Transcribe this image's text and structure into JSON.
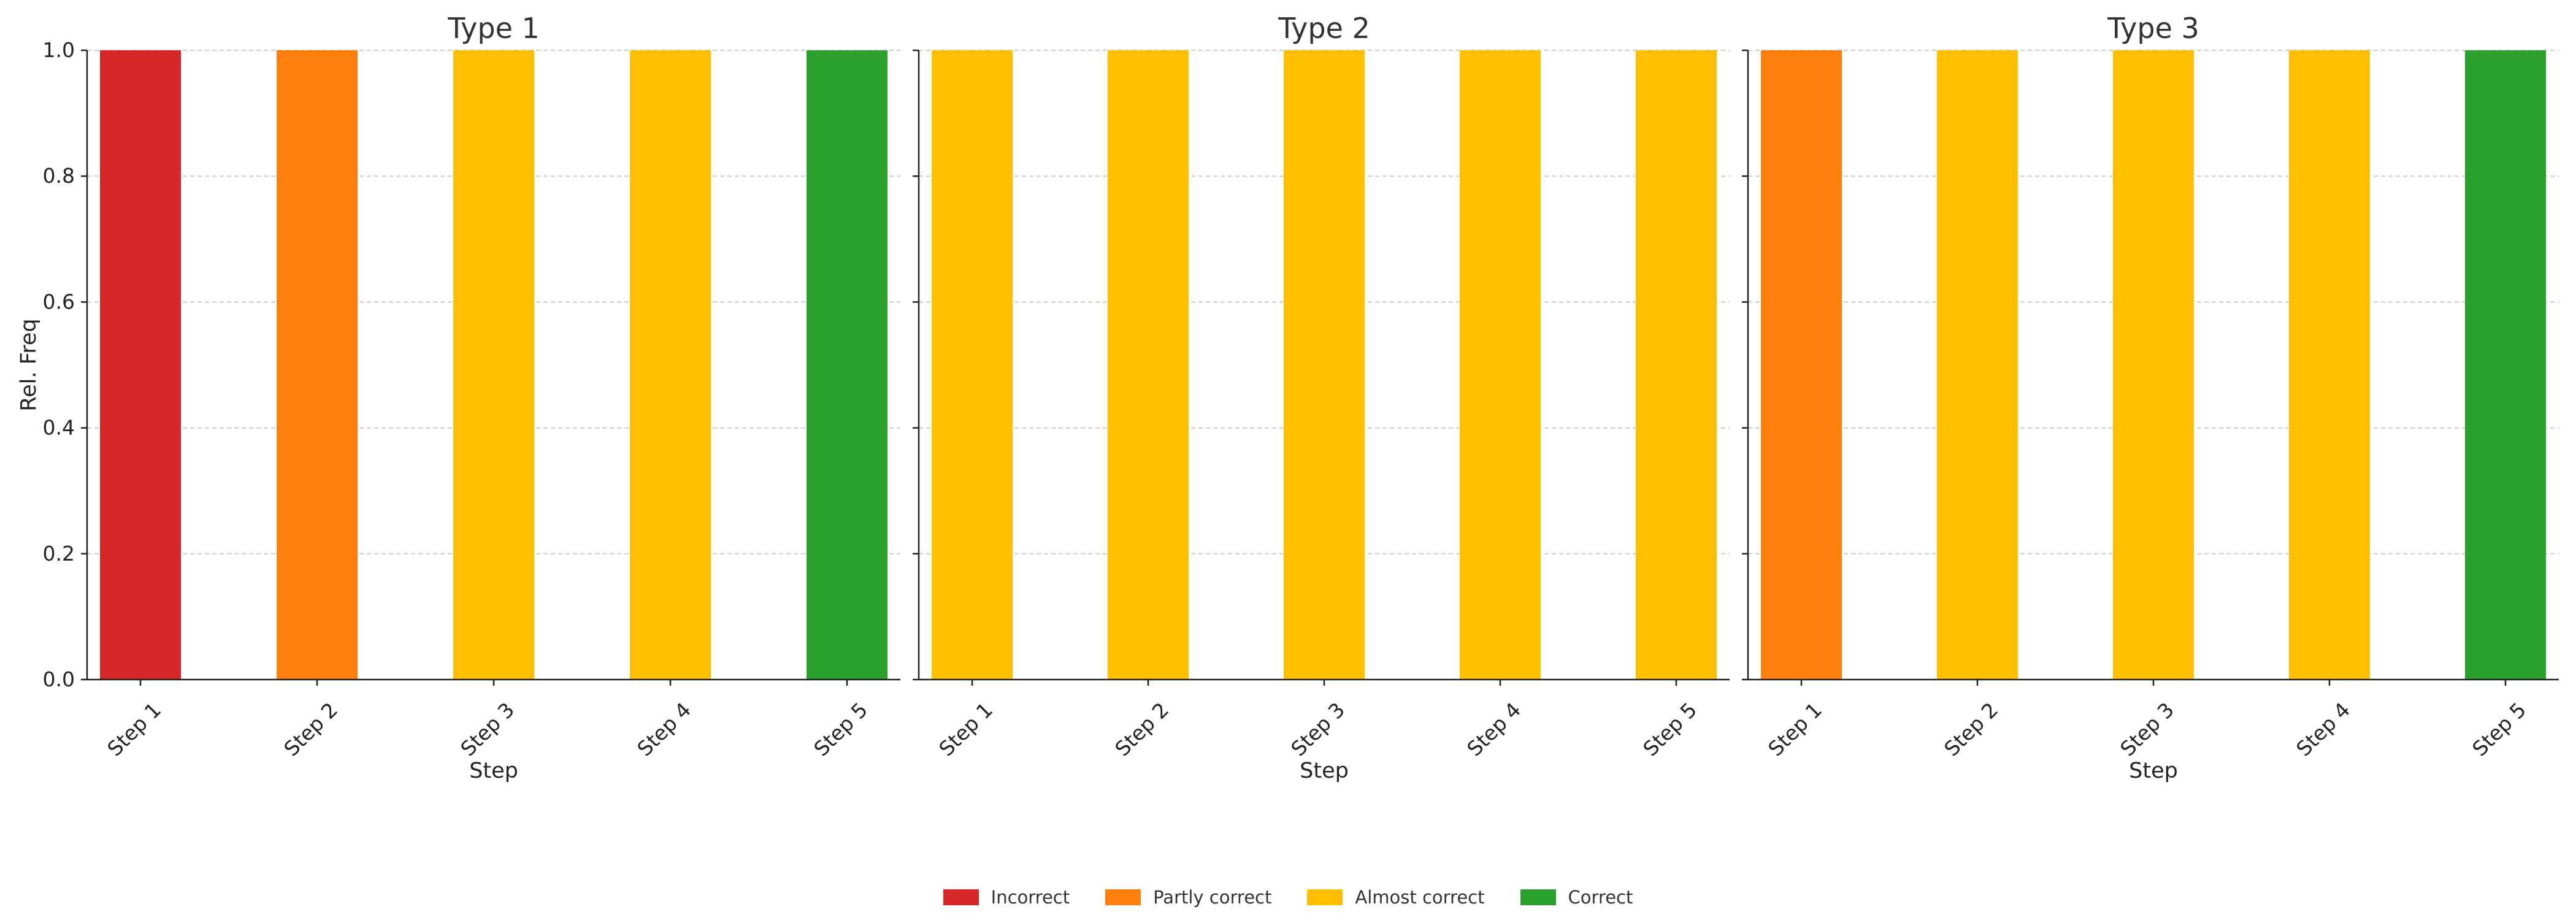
{
  "chart_data": {
    "type": "bar",
    "stacked": true,
    "ylabel": "Rel. Freq",
    "xlabel": "Step",
    "ylim": [
      0,
      1.0
    ],
    "yticks": [
      "0.0",
      "0.2",
      "0.4",
      "0.6",
      "0.8",
      "1.0"
    ],
    "grid": true,
    "legend_position": "bottom-center",
    "categories": [
      "Step 1",
      "Step 2",
      "Step 3",
      "Step 4",
      "Step 5"
    ],
    "legend": [
      {
        "label": "Incorrect",
        "color": "#d62728"
      },
      {
        "label": "Partly correct",
        "color": "#ff7f0e"
      },
      {
        "label": "Almost correct",
        "color": "#ffbf00"
      },
      {
        "label": "Correct",
        "color": "#2ca02c"
      }
    ],
    "panels": [
      {
        "title": "Type 1",
        "series": [
          {
            "name": "Incorrect",
            "values": [
              1,
              0,
              0,
              0,
              0
            ]
          },
          {
            "name": "Partly correct",
            "values": [
              0,
              1,
              0,
              0,
              0
            ]
          },
          {
            "name": "Almost correct",
            "values": [
              0,
              0,
              1,
              1,
              0
            ]
          },
          {
            "name": "Correct",
            "values": [
              0,
              0,
              0,
              0,
              1
            ]
          }
        ]
      },
      {
        "title": "Type 2",
        "series": [
          {
            "name": "Incorrect",
            "values": [
              0,
              0,
              0,
              0,
              0
            ]
          },
          {
            "name": "Partly correct",
            "values": [
              0,
              0,
              0,
              0,
              0
            ]
          },
          {
            "name": "Almost correct",
            "values": [
              1,
              1,
              1,
              1,
              1
            ]
          },
          {
            "name": "Correct",
            "values": [
              0,
              0,
              0,
              0,
              0
            ]
          }
        ]
      },
      {
        "title": "Type 3",
        "series": [
          {
            "name": "Incorrect",
            "values": [
              0,
              0,
              0,
              0,
              0
            ]
          },
          {
            "name": "Partly correct",
            "values": [
              1,
              0,
              0,
              0,
              0
            ]
          },
          {
            "name": "Almost correct",
            "values": [
              0,
              1,
              1,
              1,
              0
            ]
          },
          {
            "name": "Correct",
            "values": [
              0,
              0,
              0,
              0,
              1
            ]
          }
        ]
      }
    ]
  }
}
